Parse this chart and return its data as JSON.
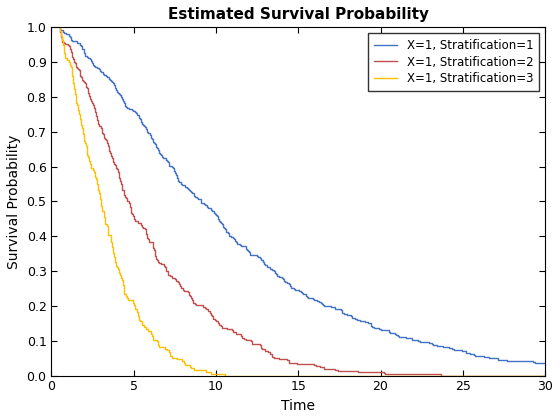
{
  "title": "Estimated Survival Probability",
  "xlabel": "Time",
  "ylabel": "Survival Probability",
  "xlim": [
    0,
    30
  ],
  "ylim": [
    0,
    1.0
  ],
  "xticks": [
    0,
    5,
    10,
    15,
    20,
    25,
    30
  ],
  "yticks": [
    0.0,
    0.1,
    0.2,
    0.3,
    0.4,
    0.5,
    0.6,
    0.7,
    0.8,
    0.9,
    1.0
  ],
  "series": [
    {
      "label": "X=1, Stratification=1",
      "color": "#4472C4",
      "weibull_scale": 12.0,
      "weibull_shape": 1.3,
      "n_steps": 400
    },
    {
      "label": "X=1, Stratification=2",
      "color": "#C0504D",
      "weibull_scale": 6.0,
      "weibull_shape": 1.4,
      "n_steps": 300
    },
    {
      "label": "X=1, Stratification=3",
      "color": "#FFBF00",
      "weibull_scale": 3.5,
      "weibull_shape": 1.5,
      "n_steps": 200
    }
  ],
  "background_color": "#ffffff",
  "legend_loc": "upper right",
  "title_fontsize": 11,
  "label_fontsize": 10,
  "tick_fontsize": 9,
  "linewidth": 1.0
}
